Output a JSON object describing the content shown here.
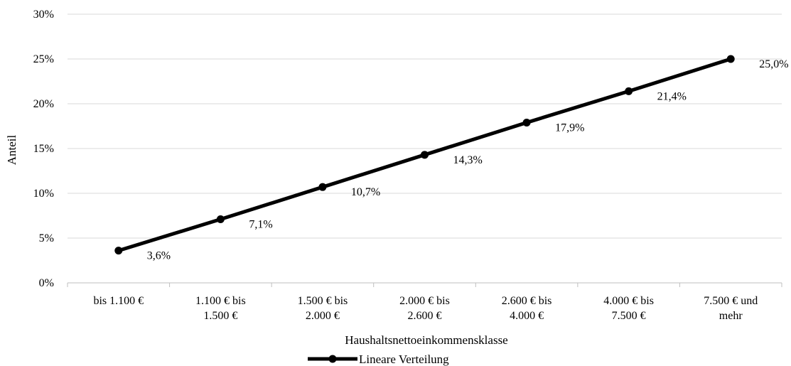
{
  "chart_data": {
    "type": "line",
    "categories": [
      [
        "bis 1.100 €"
      ],
      [
        "1.100 € bis",
        "1.500 €"
      ],
      [
        "1.500 € bis",
        "2.000 €"
      ],
      [
        "2.000 € bis",
        "2.600 €"
      ],
      [
        "2.600 € bis",
        "4.000 €"
      ],
      [
        "4.000 € bis",
        "7.500 €"
      ],
      [
        "7.500 € und",
        "mehr"
      ]
    ],
    "series": [
      {
        "name": "Lineare Verteilung",
        "values": [
          3.6,
          7.1,
          10.7,
          14.3,
          17.9,
          21.4,
          25.0
        ],
        "labels": [
          "3,6%",
          "7,1%",
          "10,7%",
          "14,3%",
          "17,9%",
          "21,4%",
          "25,0%"
        ],
        "color": "#000000"
      }
    ],
    "xlabel": "Haushaltsnettoeinkommensklasse",
    "ylabel": "Anteil",
    "ylim": [
      0,
      30
    ],
    "yticks": [
      0,
      5,
      10,
      15,
      20,
      25,
      30
    ],
    "ytick_labels": [
      "0%",
      "5%",
      "10%",
      "15%",
      "20%",
      "25%",
      "30%"
    ],
    "grid": true,
    "legend_position": "bottom"
  }
}
